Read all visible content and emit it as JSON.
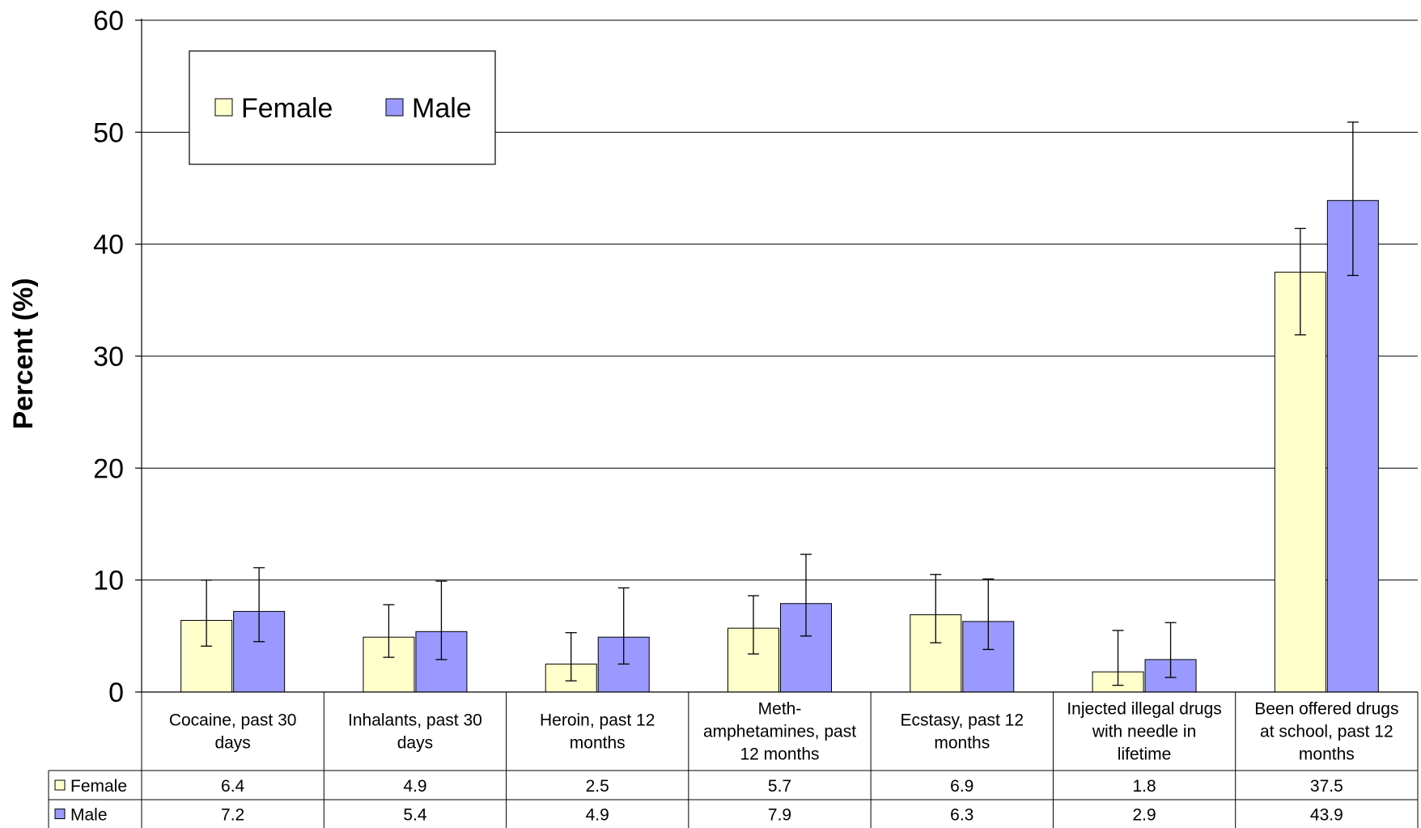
{
  "chart_data": {
    "type": "bar",
    "ylabel": "Percent (%)",
    "xlabel": "",
    "title": "",
    "ylim": [
      0,
      60
    ],
    "yticks": [
      0,
      10,
      20,
      30,
      40,
      50,
      60
    ],
    "grid": true,
    "legend_position": "top-left",
    "categories": [
      [
        "Cocaine, past 30",
        "days"
      ],
      [
        "Inhalants, past 30",
        "days"
      ],
      [
        "Heroin, past 12",
        "months"
      ],
      [
        "Meth-",
        "amphetamines, past",
        "12 months"
      ],
      [
        "Ecstasy, past 12",
        "months"
      ],
      [
        "Injected illegal drugs",
        "with needle in",
        "lifetime"
      ],
      [
        "Been offered drugs",
        "at school, past 12",
        "months"
      ]
    ],
    "series": [
      {
        "name": "Female",
        "color": "#ffffcc",
        "values": [
          6.4,
          4.9,
          2.5,
          5.7,
          6.9,
          1.8,
          37.5
        ],
        "value_labels": [
          "6.4",
          "4.9",
          "2.5",
          "5.7",
          "6.9",
          "1.8",
          "37.5"
        ],
        "error_low": [
          4.1,
          3.1,
          1.0,
          3.4,
          4.4,
          0.6,
          31.9
        ],
        "error_high": [
          10.0,
          7.8,
          5.3,
          8.6,
          10.5,
          5.5,
          41.4
        ]
      },
      {
        "name": "Male",
        "color": "#9999ff",
        "values": [
          7.2,
          5.4,
          4.9,
          7.9,
          6.3,
          2.9,
          43.9
        ],
        "value_labels": [
          "7.2",
          "5.4",
          "4.9",
          "7.9",
          "6.3",
          "2.9",
          "43.9"
        ],
        "error_low": [
          4.5,
          2.9,
          2.5,
          5.0,
          3.8,
          1.3,
          37.2
        ],
        "error_high": [
          11.1,
          9.9,
          9.3,
          12.3,
          10.1,
          6.2,
          50.9
        ]
      }
    ]
  }
}
